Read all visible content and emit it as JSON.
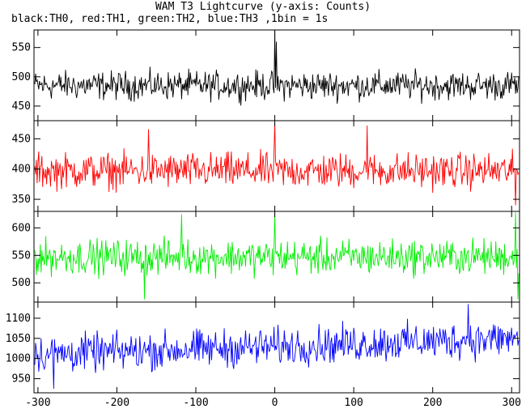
{
  "chart_data": {
    "type": "line",
    "title": "WAM T3 Lightcurve (y-axis: Counts)",
    "subtitle": "black:TH0, red:TH1, green:TH2, blue:TH3 ,1bin = 1s",
    "ylabel": "Counts",
    "x_range": [
      -305,
      310
    ],
    "x_ticks": [
      -300,
      -200,
      -100,
      0,
      100,
      200,
      300
    ],
    "x_tick_labels": [
      "-300",
      "-200",
      "-100",
      "0",
      "100",
      "200",
      "300"
    ],
    "grid": false,
    "panels": [
      {
        "series_name": "TH0",
        "color": "#000000",
        "ylim": [
          425,
          580
        ],
        "yticks": [
          450,
          500,
          550
        ],
        "ytick_labels": [
          "450",
          "500",
          "550"
        ],
        "baseline": 485,
        "noise_amplitude": 20,
        "features": [
          {
            "x": 0,
            "y": 580
          },
          {
            "x": 2,
            "y": 560
          }
        ]
      },
      {
        "series_name": "TH1",
        "color": "#ff0000",
        "ylim": [
          330,
          480
        ],
        "yticks": [
          350,
          400,
          450
        ],
        "ytick_labels": [
          "350",
          "400",
          "450"
        ],
        "baseline": 397,
        "noise_amplitude": 24,
        "features": [
          {
            "x": -160,
            "y": 466
          },
          {
            "x": 0,
            "y": 476
          },
          {
            "x": 117,
            "y": 472
          },
          {
            "x": 305,
            "y": 340
          }
        ]
      },
      {
        "series_name": "TH2",
        "color": "#00ee00",
        "ylim": [
          465,
          630
        ],
        "yticks": [
          500,
          550,
          600
        ],
        "ytick_labels": [
          "500",
          "550",
          "600"
        ],
        "baseline": 547,
        "noise_amplitude": 26,
        "features": [
          {
            "x": -118,
            "y": 625
          },
          {
            "x": -165,
            "y": 470
          },
          {
            "x": 0,
            "y": 628
          },
          {
            "x": 305,
            "y": 628
          },
          {
            "x": 308,
            "y": 470
          }
        ]
      },
      {
        "series_name": "TH3",
        "color": "#0000ff",
        "ylim": [
          915,
          1140
        ],
        "yticks": [
          950,
          1000,
          1050,
          1100
        ],
        "ytick_labels": [
          "950",
          "1000",
          "1050",
          "1100"
        ],
        "baseline": 1010,
        "trend_end": 1050,
        "noise_amplitude": 38,
        "features": [
          {
            "x": 245,
            "y": 1135
          },
          {
            "x": -280,
            "y": 925
          }
        ]
      }
    ]
  }
}
